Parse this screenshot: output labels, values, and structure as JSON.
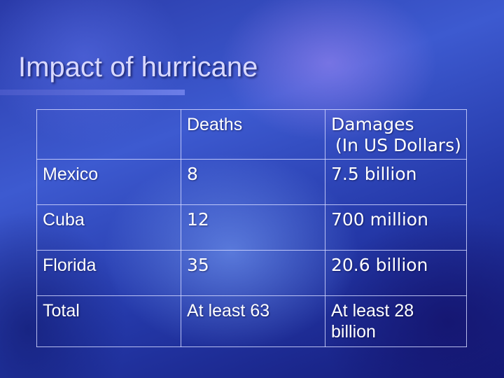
{
  "slide": {
    "title": "Impact of hurricane"
  },
  "table": {
    "headers": {
      "corner": "",
      "deaths": "Deaths",
      "damages_line1": "Damages",
      "damages_line2": "(In US Dollars)"
    },
    "rows": [
      {
        "region": "Mexico",
        "deaths": "8",
        "damages": "7.5 billion"
      },
      {
        "region": "Cuba",
        "deaths": "12",
        "damages": "700 million"
      },
      {
        "region": "Florida",
        "deaths": "35",
        "damages": "20.6 billion"
      },
      {
        "region": "Total",
        "deaths": "At least 63",
        "damages": "At least 28 billion"
      }
    ]
  }
}
